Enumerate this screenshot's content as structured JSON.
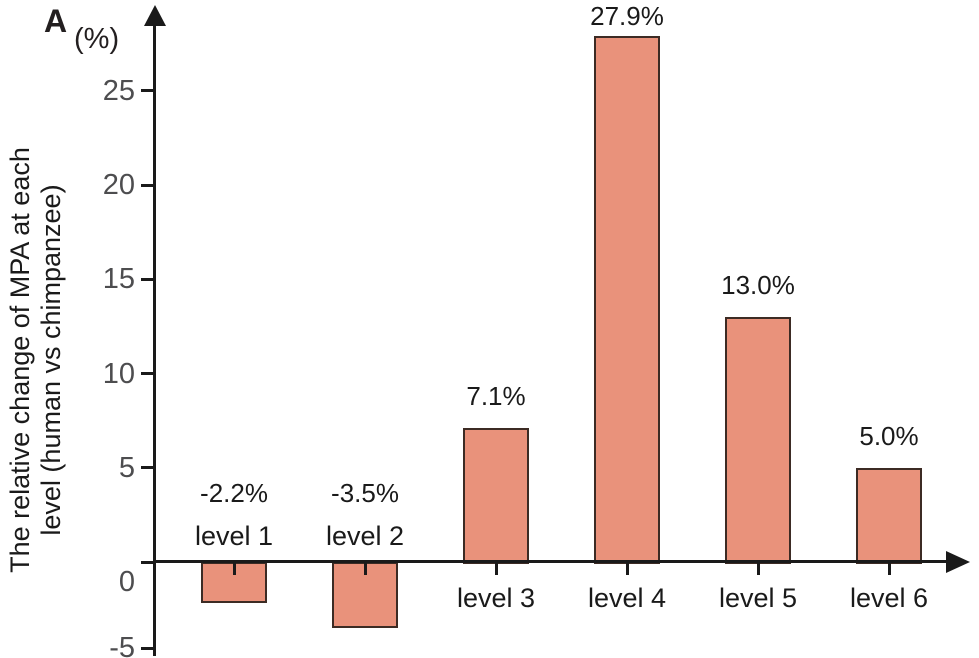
{
  "panel": {
    "label": "A"
  },
  "chart_data": {
    "type": "bar",
    "title": "",
    "y_axis_unit": "(%)",
    "ylabel_lines": [
      "The relative change of MPA at each",
      "level (human vs chimpanzee)"
    ],
    "categories": [
      "level 1",
      "level 2",
      "level 3",
      "level 4",
      "level 5",
      "level 6"
    ],
    "values": [
      -2.2,
      -3.5,
      7.1,
      27.9,
      13.0,
      5.0
    ],
    "value_labels": [
      "-2.2%",
      "-3.5%",
      "7.1%",
      "27.9%",
      "13.0%",
      "5.0%"
    ],
    "yticks": [
      25,
      20,
      15,
      10,
      5,
      0,
      -5
    ],
    "ylim": [
      -5,
      29
    ],
    "grid": false,
    "legend_position": "none",
    "bar_color": "#E9927B",
    "bar_border_color": "#3C2B24",
    "axis_color": "#1A1A1A",
    "tick_label_color": "#4D4D4F"
  }
}
